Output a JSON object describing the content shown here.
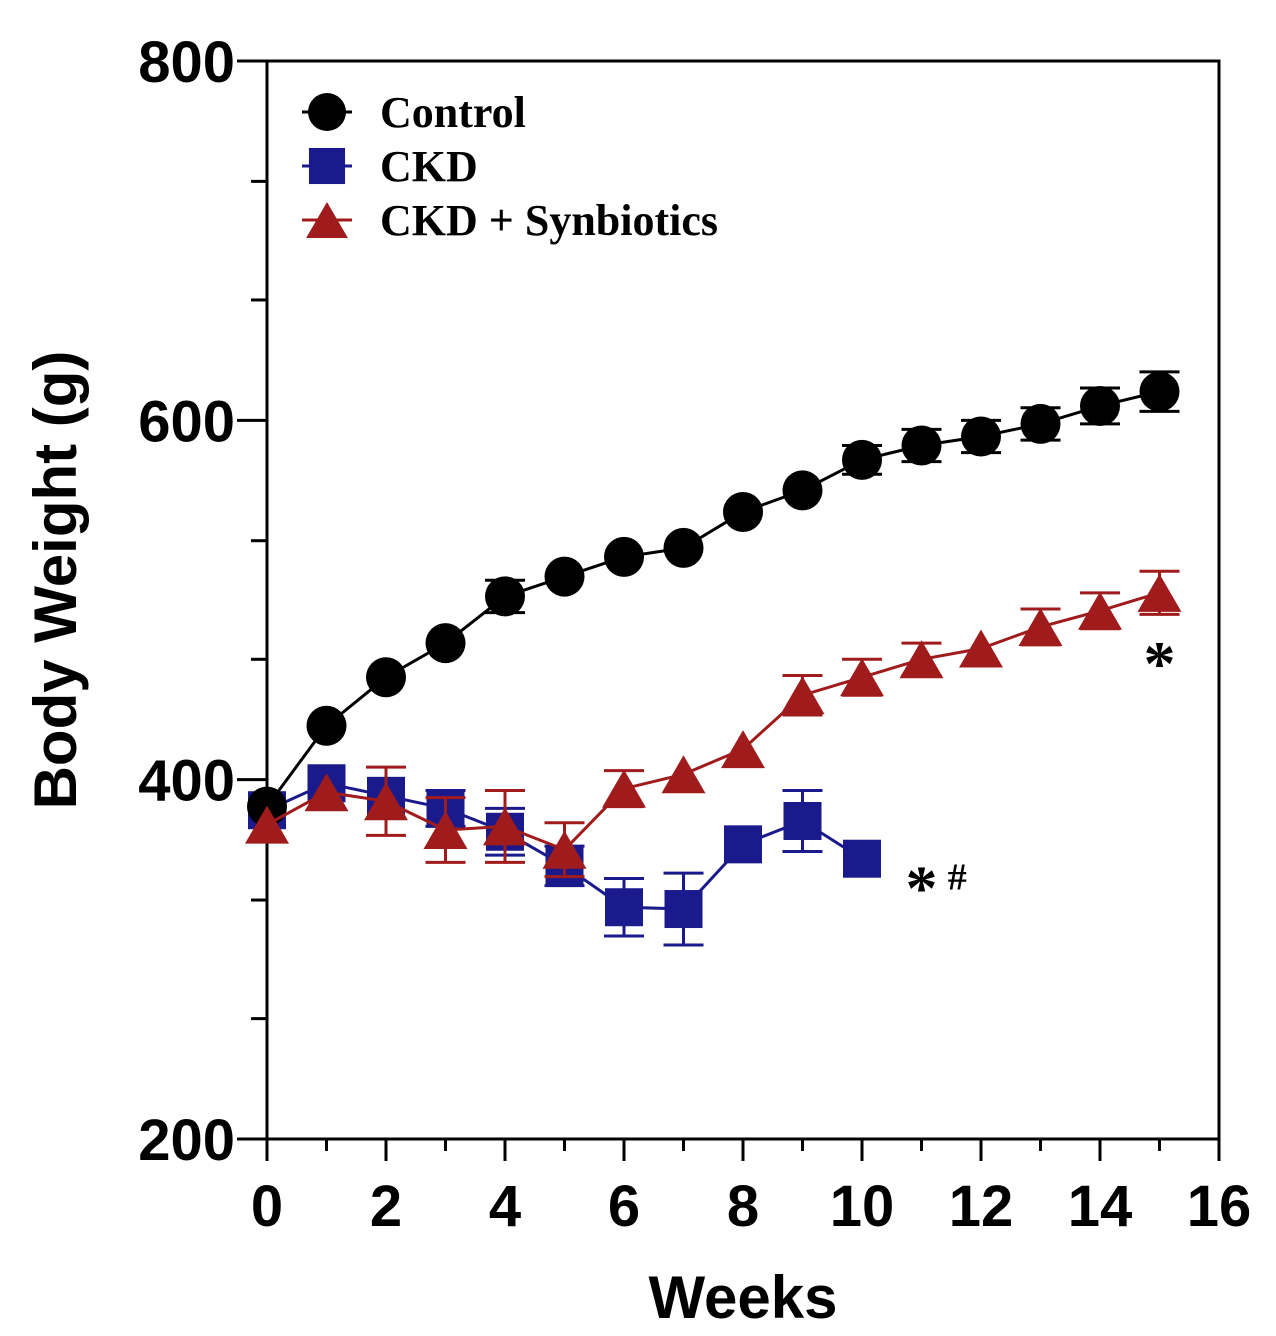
{
  "chart_data": {
    "type": "line",
    "title": "",
    "xlabel": "Weeks",
    "ylabel": "Body Weight (g)",
    "xlim": [
      0,
      16
    ],
    "ylim": [
      200,
      800
    ],
    "x_ticks": [
      0,
      2,
      4,
      6,
      8,
      10,
      12,
      14,
      16
    ],
    "y_ticks": [
      200,
      400,
      600,
      800
    ],
    "y_minor_ticks": [
      267,
      333,
      467,
      533,
      667,
      733
    ],
    "grid": false,
    "legend_position": "top-left",
    "series": [
      {
        "name": "Control",
        "marker": "circle",
        "color": "#000000",
        "x": [
          0,
          1,
          2,
          3,
          4,
          5,
          6,
          7,
          8,
          9,
          10,
          11,
          12,
          13,
          14,
          15
        ],
        "values": [
          385,
          430,
          457,
          476,
          502,
          513,
          524,
          529,
          549,
          561,
          578,
          586,
          591,
          598,
          608,
          616
        ],
        "error": [
          0,
          0,
          0,
          0,
          9,
          0,
          0,
          0,
          0,
          0,
          8,
          9,
          9,
          9,
          10,
          11
        ]
      },
      {
        "name": "CKD",
        "marker": "square",
        "color": "#1a1a8c",
        "x": [
          0,
          1,
          2,
          3,
          4,
          5,
          6,
          7,
          8,
          9,
          10
        ],
        "values": [
          383,
          398,
          391,
          384,
          371,
          352,
          329,
          328,
          364,
          377,
          356
        ],
        "error": [
          0,
          0,
          0,
          10,
          13,
          11,
          16,
          20,
          0,
          17,
          0
        ]
      },
      {
        "name": "CKD + Synbiotics",
        "marker": "triangle",
        "color": "#a01c1c",
        "x": [
          0,
          1,
          2,
          3,
          4,
          5,
          6,
          7,
          8,
          9,
          10,
          11,
          12,
          13,
          14,
          15
        ],
        "values": [
          375,
          393,
          388,
          372,
          374,
          361,
          395,
          403,
          417,
          447,
          457,
          467,
          473,
          485,
          494,
          504
        ],
        "error": [
          0,
          0,
          19,
          18,
          20,
          15,
          10,
          0,
          0,
          11,
          10,
          9,
          0,
          10,
          10,
          12
        ]
      }
    ],
    "annotations": [
      {
        "text": "*",
        "near_series": "CKD + Synbiotics",
        "x": 15,
        "y": 465
      },
      {
        "text": "*",
        "near_series": "CKD",
        "x": 11,
        "y": 340
      },
      {
        "text": "#",
        "near_series": "CKD",
        "x": 11.6,
        "y": 340
      }
    ]
  }
}
